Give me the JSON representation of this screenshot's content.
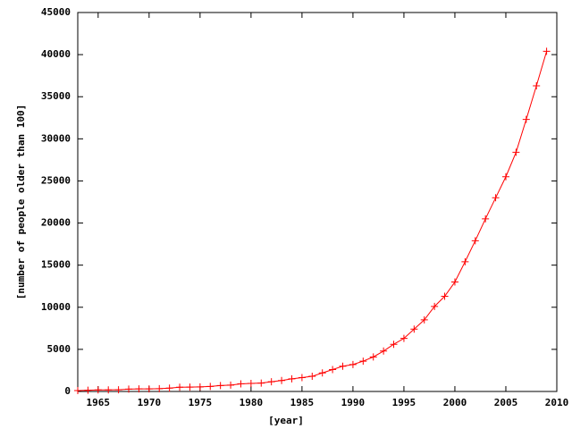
{
  "chart_data": {
    "type": "line",
    "xlabel": "[year]",
    "ylabel": "[number of people older than 100]",
    "x": [
      1963,
      1964,
      1965,
      1966,
      1967,
      1968,
      1969,
      1970,
      1971,
      1972,
      1973,
      1974,
      1975,
      1976,
      1977,
      1978,
      1979,
      1980,
      1981,
      1982,
      1983,
      1984,
      1985,
      1986,
      1987,
      1988,
      1989,
      1990,
      1991,
      1992,
      1993,
      1994,
      1995,
      1996,
      1997,
      1998,
      1999,
      2000,
      2001,
      2002,
      2003,
      2004,
      2005,
      2006,
      2007,
      2008,
      2009
    ],
    "values": [
      100,
      150,
      180,
      190,
      200,
      280,
      300,
      310,
      330,
      400,
      500,
      520,
      540,
      600,
      700,
      750,
      900,
      950,
      1000,
      1150,
      1300,
      1500,
      1650,
      1800,
      2200,
      2600,
      3000,
      3200,
      3600,
      4100,
      4800,
      5600,
      6300,
      7400,
      8500,
      10100,
      11300,
      13000,
      15400,
      17900,
      20500,
      23000,
      25500,
      28400,
      32300,
      36300,
      40400
    ],
    "color": "#ff0000",
    "xlim": [
      1963,
      2010
    ],
    "xticks": [
      1965,
      1970,
      1975,
      1980,
      1985,
      1990,
      1995,
      2000,
      2005,
      2010
    ],
    "ylim": [
      0,
      45000
    ],
    "yticks": [
      0,
      5000,
      10000,
      15000,
      20000,
      25000,
      30000,
      35000,
      40000,
      45000
    ],
    "grid": false
  }
}
